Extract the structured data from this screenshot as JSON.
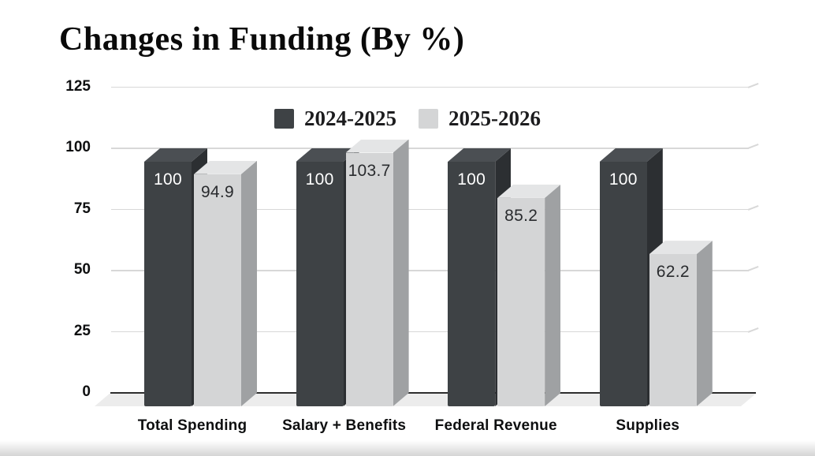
{
  "chart_data": {
    "type": "bar",
    "effect": "3d",
    "title": "Changes in Funding (By %)",
    "categories": [
      "Total Spending",
      "Salary + Benefits",
      "Federal Revenue",
      "Supplies"
    ],
    "series": [
      {
        "name": "2024-2025",
        "values": [
          100,
          100,
          100,
          100
        ],
        "color": "#3e4245",
        "top_color": "#4b4f53",
        "side_color": "#2c2f32",
        "label_color": "#ffffff"
      },
      {
        "name": "2025-2026",
        "values": [
          94.9,
          103.7,
          85.2,
          62.2
        ],
        "color": "#d4d5d6",
        "top_color": "#e4e5e6",
        "side_color": "#9fa1a3",
        "label_color": "#292b2e"
      }
    ],
    "xlabel": "",
    "ylabel": "",
    "ylim": [
      0,
      125
    ],
    "yticks": [
      0,
      25,
      50,
      75,
      100,
      125
    ],
    "grid": true,
    "grid_color": "#d8d8d8",
    "zero_line_color": "#2d2d2d",
    "floor_color": "#ececec",
    "legend_position": "top",
    "background_color": "#ffffff"
  }
}
